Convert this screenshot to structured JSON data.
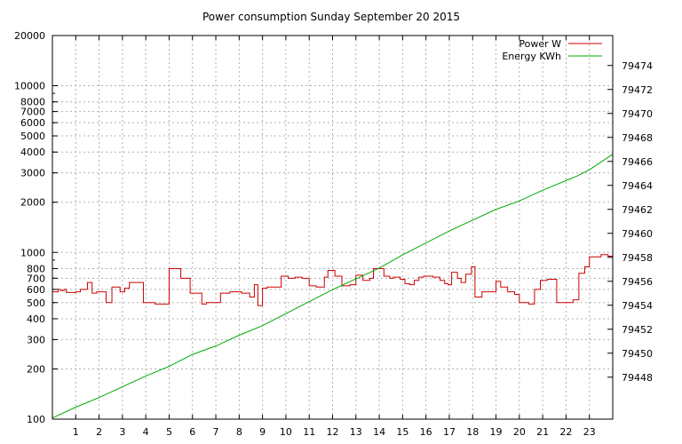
{
  "chart_data": {
    "type": "line",
    "title": "Power consumption Sunday September 20 2015",
    "xlabel": "",
    "ylabel": "",
    "y2label": "",
    "xlim": [
      0,
      24
    ],
    "ylim": [
      100,
      20000
    ],
    "y_scale": "log",
    "y2lim": [
      79444.5,
      79476.5
    ],
    "grid": true,
    "legend_position": "top-right",
    "x_ticks": [
      1,
      2,
      3,
      4,
      5,
      6,
      7,
      8,
      9,
      10,
      11,
      12,
      13,
      14,
      15,
      16,
      17,
      18,
      19,
      20,
      21,
      22,
      23
    ],
    "y_ticks": [
      100,
      200,
      300,
      400,
      500,
      600,
      700,
      800,
      1000,
      2000,
      3000,
      4000,
      5000,
      6000,
      7000,
      8000,
      10000,
      20000
    ],
    "y2_ticks": [
      79448,
      79450,
      79452,
      79454,
      79456,
      79458,
      79460,
      79462,
      79464,
      79466,
      79468,
      79470,
      79472,
      79474
    ],
    "series": [
      {
        "name": "Power W",
        "axis": "left",
        "color": "#cc0000",
        "style": "steps",
        "x": [
          0,
          0.25,
          0.35,
          0.5,
          0.6,
          1.0,
          1.2,
          1.5,
          1.7,
          1.9,
          2.05,
          2.3,
          2.55,
          2.9,
          3.1,
          3.3,
          3.5,
          3.9,
          4.0,
          4.2,
          4.4,
          4.8,
          5.0,
          5.2,
          5.5,
          5.9,
          6.2,
          6.4,
          6.6,
          6.9,
          7.2,
          7.6,
          7.8,
          8.1,
          8.45,
          8.65,
          8.8,
          9.0,
          9.2,
          9.5,
          9.8,
          10.1,
          10.4,
          10.7,
          11.0,
          11.3,
          11.65,
          11.8,
          12.1,
          12.4,
          12.75,
          13.0,
          13.3,
          13.6,
          13.75,
          13.9,
          14.2,
          14.45,
          14.6,
          14.9,
          15.1,
          15.3,
          15.5,
          15.7,
          15.9,
          16.3,
          16.6,
          16.8,
          16.95,
          17.1,
          17.35,
          17.5,
          17.7,
          17.95,
          18.1,
          18.4,
          18.8,
          19.0,
          19.2,
          19.5,
          19.8,
          20.0,
          20.4,
          20.65,
          20.9,
          21.2,
          21.6,
          21.9,
          22.3,
          22.55,
          22.8,
          23.0,
          23.3,
          23.5,
          23.8,
          24.0
        ],
        "y": [
          580,
          600,
          590,
          600,
          575,
          580,
          600,
          660,
          570,
          580,
          580,
          500,
          620,
          580,
          610,
          660,
          660,
          500,
          500,
          500,
          490,
          490,
          800,
          800,
          700,
          570,
          570,
          490,
          500,
          500,
          570,
          580,
          580,
          570,
          540,
          640,
          480,
          610,
          620,
          620,
          720,
          700,
          710,
          700,
          630,
          620,
          710,
          780,
          720,
          630,
          640,
          730,
          680,
          700,
          800,
          800,
          720,
          700,
          710,
          690,
          650,
          640,
          680,
          710,
          720,
          710,
          680,
          650,
          640,
          760,
          700,
          660,
          740,
          820,
          540,
          580,
          580,
          670,
          620,
          580,
          560,
          500,
          490,
          600,
          680,
          690,
          500,
          500,
          520,
          750,
          820,
          940,
          940,
          970,
          950,
          1000
        ]
      },
      {
        "name": "Energy KWh",
        "axis": "right",
        "color": "#00aa00",
        "style": "line",
        "x": [
          0,
          1,
          2,
          3,
          4,
          5,
          6,
          7,
          8,
          9,
          10,
          11,
          12,
          13,
          14,
          15,
          16,
          17,
          18,
          19,
          20,
          21,
          22,
          22.5,
          23,
          24
        ],
        "y": [
          79444.6,
          79445.5,
          79446.3,
          79447.2,
          79448.1,
          79448.9,
          79449.9,
          79450.6,
          79451.5,
          79452.3,
          79453.3,
          79454.3,
          79455.3,
          79456.2,
          79457.1,
          79458.2,
          79459.2,
          79460.2,
          79461.1,
          79462.0,
          79462.7,
          79463.6,
          79464.4,
          79464.8,
          79465.3,
          79466.6
        ]
      }
    ]
  }
}
